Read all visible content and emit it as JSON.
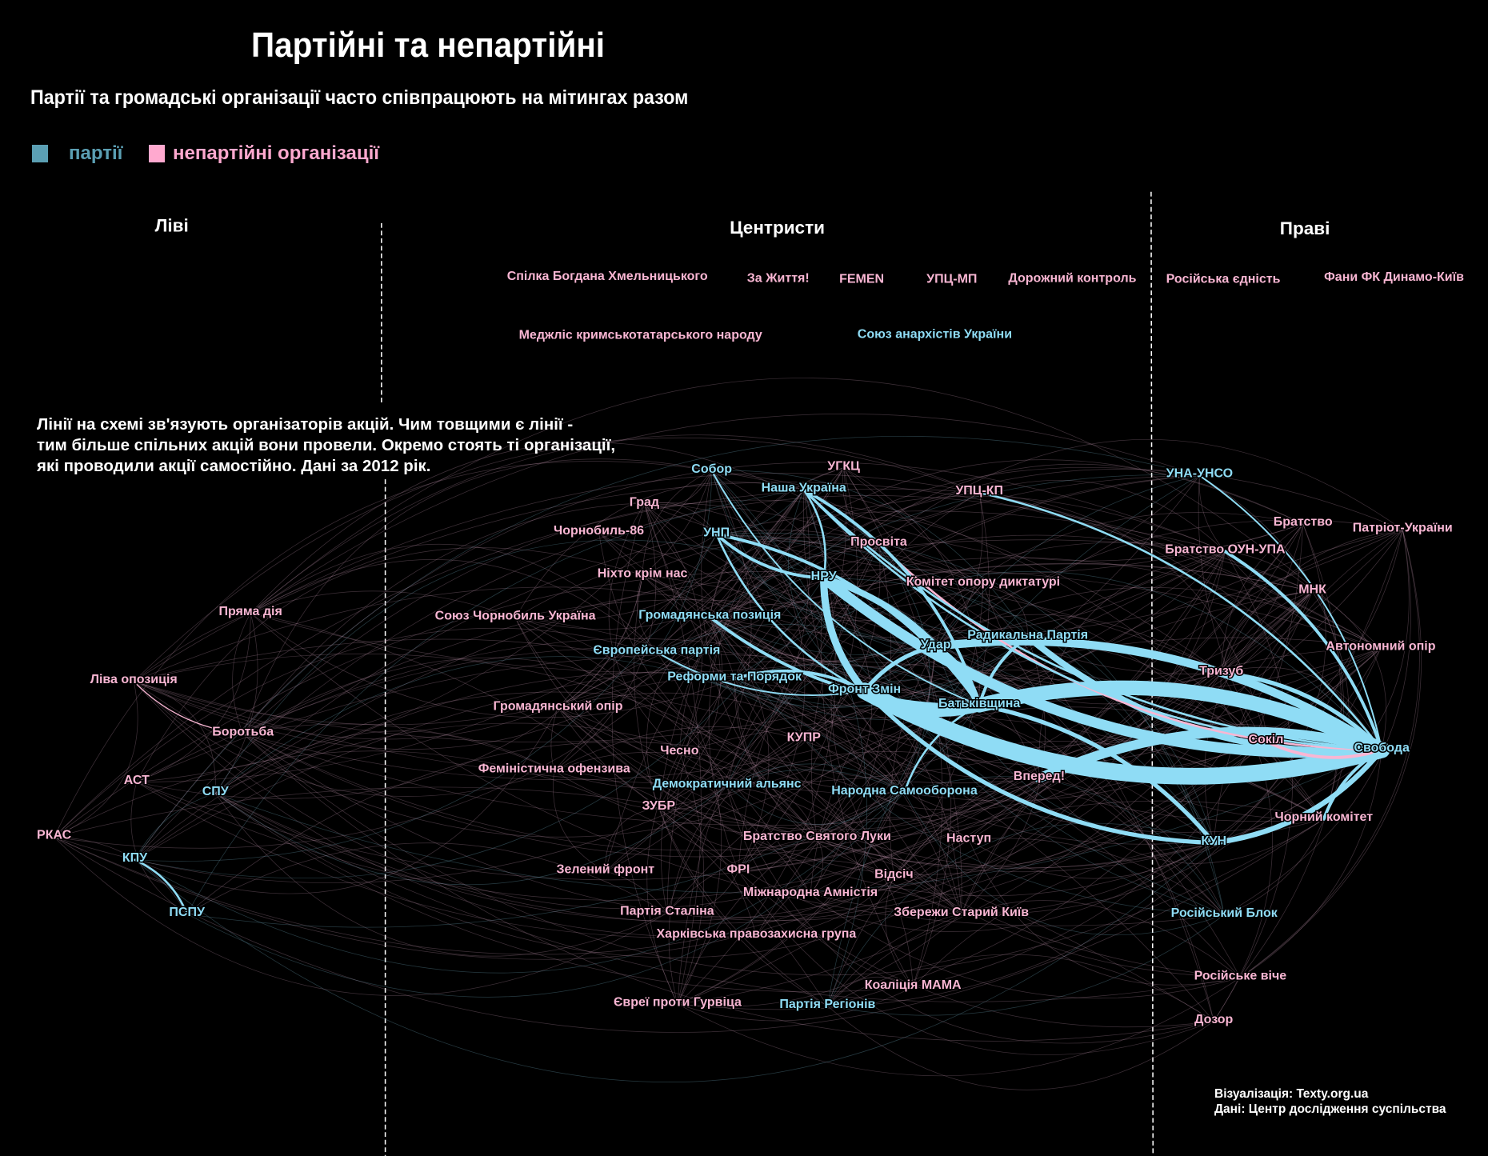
{
  "title": "Партійні та непартійні",
  "subtitle": "Партії та громадські організації часто співпрацюють на мітингах разом",
  "legend": {
    "party": "партії",
    "org": "непартійні організації"
  },
  "colors": {
    "party": "#8fdcf5",
    "org": "#f9b6d3",
    "party_legend": "#5b9fb3",
    "org_legend": "#ffa9cf",
    "background": "#000000"
  },
  "columns": {
    "left": "Ліві",
    "center": "Центристи",
    "right": "Праві"
  },
  "description": [
    "Лінії на схемі зв'язують організаторів акцій. Чим товщими є лінії -",
    "тим більше спільних акцій вони провели. Окремо стоять ті організації,",
    "які проводили акції самостійно. Дані за 2012 рік."
  ],
  "credits": [
    "Візуалізація: Texty.org.ua",
    "Дані: Центр дослідження суспільства"
  ],
  "nodes": [
    {
      "name": "Спілка Богдана Хмельницького",
      "type": "org"
    },
    {
      "name": "За Життя!",
      "type": "org"
    },
    {
      "name": "FEMEN",
      "type": "org"
    },
    {
      "name": "УПЦ-МП",
      "type": "org"
    },
    {
      "name": "Дорожний контроль",
      "type": "org"
    },
    {
      "name": "Російська єдність",
      "type": "org"
    },
    {
      "name": "Фани ФК Динамо-Київ",
      "type": "org"
    },
    {
      "name": "Меджліс кримськотатарського народу",
      "type": "org"
    },
    {
      "name": "Союз анархістів України",
      "type": "party"
    },
    {
      "name": "Собор",
      "type": "party"
    },
    {
      "name": "УГКЦ",
      "type": "org"
    },
    {
      "name": "Наша Україна",
      "type": "party"
    },
    {
      "name": "УПЦ-КП",
      "type": "org"
    },
    {
      "name": "Град",
      "type": "org"
    },
    {
      "name": "Чорнобиль-86",
      "type": "org"
    },
    {
      "name": "УНП",
      "type": "party"
    },
    {
      "name": "Просвіта",
      "type": "org"
    },
    {
      "name": "Ніхто крім нас",
      "type": "org"
    },
    {
      "name": "НРУ",
      "type": "party"
    },
    {
      "name": "Комітет опору диктатурі",
      "type": "org"
    },
    {
      "name": "Союз Чорнобиль Україна",
      "type": "org"
    },
    {
      "name": "Громадянська позиція",
      "type": "party"
    },
    {
      "name": "Радикальна Партія",
      "type": "party"
    },
    {
      "name": "Удар",
      "type": "party"
    },
    {
      "name": "Європейська партія",
      "type": "party"
    },
    {
      "name": "Реформи та Порядок",
      "type": "party"
    },
    {
      "name": "Фронт Змін",
      "type": "party"
    },
    {
      "name": "Батьківщина",
      "type": "party"
    },
    {
      "name": "Громадянський опір",
      "type": "org"
    },
    {
      "name": "КУПР",
      "type": "org"
    },
    {
      "name": "Чесно",
      "type": "org"
    },
    {
      "name": "Феміністична офензива",
      "type": "org"
    },
    {
      "name": "Вперед!",
      "type": "org"
    },
    {
      "name": "Демократичний альянс",
      "type": "party"
    },
    {
      "name": "Народна Самооборона",
      "type": "party"
    },
    {
      "name": "ЗУБР",
      "type": "org"
    },
    {
      "name": "Братство Святого Луки",
      "type": "org"
    },
    {
      "name": "Наступ",
      "type": "org"
    },
    {
      "name": "Зелений фронт",
      "type": "org"
    },
    {
      "name": "ФРІ",
      "type": "org"
    },
    {
      "name": "Відсіч",
      "type": "org"
    },
    {
      "name": "Міжнародна Амністія",
      "type": "org"
    },
    {
      "name": "Партія Сталіна",
      "type": "org"
    },
    {
      "name": "Збережи Старий Київ",
      "type": "org"
    },
    {
      "name": "Харківська правозахисна група",
      "type": "org"
    },
    {
      "name": "Коаліція МАМА",
      "type": "org"
    },
    {
      "name": "Євреї проти Гурвіца",
      "type": "org"
    },
    {
      "name": "Партія Регіонів",
      "type": "party"
    },
    {
      "name": "УНА-УНСО",
      "type": "party"
    },
    {
      "name": "Братство",
      "type": "org"
    },
    {
      "name": "Патріот-України",
      "type": "org"
    },
    {
      "name": "Братство ОУН-УПА",
      "type": "org"
    },
    {
      "name": "МНК",
      "type": "org"
    },
    {
      "name": "Автономний опір",
      "type": "org"
    },
    {
      "name": "Тризуб",
      "type": "org"
    },
    {
      "name": "Сокіл",
      "type": "org"
    },
    {
      "name": "Свобода",
      "type": "party"
    },
    {
      "name": "Чорний комітет",
      "type": "org"
    },
    {
      "name": "КУН",
      "type": "party"
    },
    {
      "name": "Російський Блок",
      "type": "party"
    },
    {
      "name": "Російське віче",
      "type": "org"
    },
    {
      "name": "Дозор",
      "type": "org"
    },
    {
      "name": "Пряма дія",
      "type": "org"
    },
    {
      "name": "Ліва опозиція",
      "type": "org"
    },
    {
      "name": "Боротьба",
      "type": "org"
    },
    {
      "name": "АСТ",
      "type": "org"
    },
    {
      "name": "СПУ",
      "type": "party"
    },
    {
      "name": "РКАС",
      "type": "org"
    },
    {
      "name": "КПУ",
      "type": "party"
    },
    {
      "name": "ПСПУ",
      "type": "party"
    }
  ],
  "edges": [
    [
      "Свобода",
      "Фронт Змін",
      16
    ],
    [
      "Свобода",
      "Батьківщина",
      14
    ],
    [
      "Свобода",
      "НРУ",
      10
    ],
    [
      "Свобода",
      "Удар",
      8
    ],
    [
      "Свобода",
      "Радикальна Партія",
      6
    ],
    [
      "Свобода",
      "Вперед!",
      9
    ],
    [
      "Свобода",
      "КУН",
      5
    ],
    [
      "Свобода",
      "Тризуб",
      4
    ],
    [
      "Свобода",
      "Сокіл",
      3
    ],
    [
      "Свобода",
      "Братство ОУН-УПА",
      3
    ],
    [
      "Свобода",
      "Просвіта",
      2
    ],
    [
      "Свобода",
      "УПЦ-КП",
      2
    ],
    [
      "Свобода",
      "Наша Україна",
      2
    ],
    [
      "Свобода",
      "Чорний комітет",
      3
    ],
    [
      "Батьківщина",
      "Фронт Змін",
      12
    ],
    [
      "НРУ",
      "Фронт Змін",
      7
    ],
    [
      "НРУ",
      "Батьківщина",
      6
    ],
    [
      "УНП",
      "НРУ",
      3
    ],
    [
      "УНП",
      "Батьківщина",
      3
    ],
    [
      "УНП",
      "Фронт Змін",
      2
    ],
    [
      "КУН",
      "Фронт Змін",
      4
    ],
    [
      "КУН",
      "Батьківщина",
      4
    ],
    [
      "Наша Україна",
      "Батьківщина",
      3
    ],
    [
      "Удар",
      "Фронт Змін",
      4
    ],
    [
      "Удар",
      "Батьківщина",
      4
    ],
    [
      "Громадянська позиція",
      "Батьківщина",
      3
    ],
    [
      "Реформи та Порядок",
      "Фронт Змін",
      3
    ],
    [
      "Радикальна Партія",
      "Батьківщина",
      3
    ],
    [
      "КПУ",
      "ПСПУ",
      2
    ],
    [
      "Наша Україна",
      "Свобода",
      2
    ],
    [
      "УНА-УНСО",
      "Свобода",
      1.5
    ],
    [
      "Собор",
      "Батьківщина",
      1.5
    ],
    [
      "Наша Україна",
      "НРУ",
      2
    ],
    [
      "Ліва опозиція",
      "Боротьба",
      1
    ],
    [
      "Народна Самооборона",
      "Батьківщина",
      2
    ],
    [
      "Європейська партія",
      "Фронт Змін",
      1.5
    ]
  ]
}
